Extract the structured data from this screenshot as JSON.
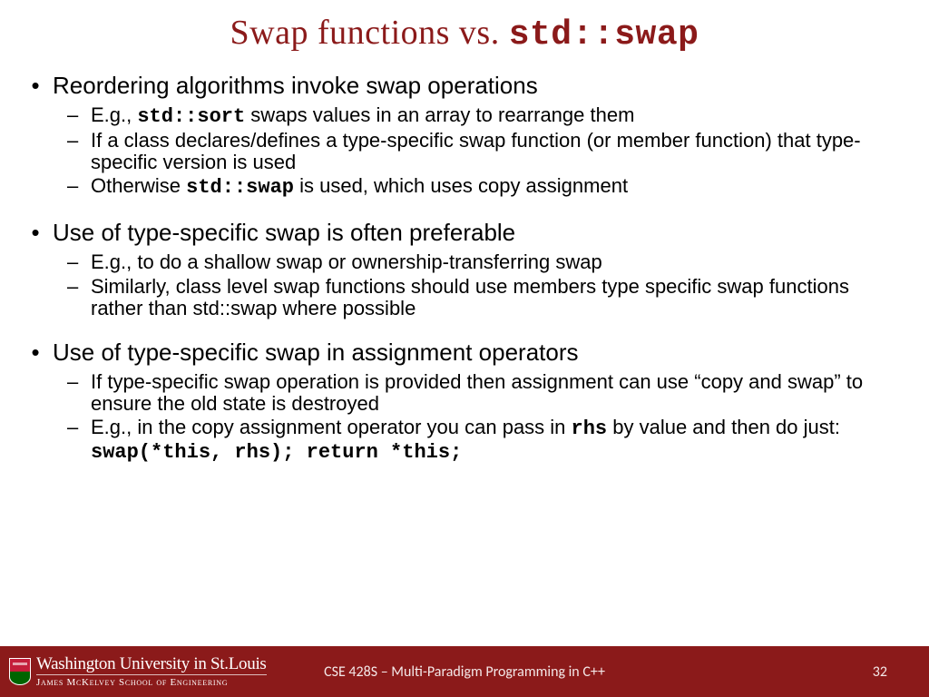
{
  "colors": {
    "accent": "#8b1a1a",
    "text": "#000000",
    "bg": "#ffffff",
    "footer_text": "#ffffff"
  },
  "title": {
    "prefix": "Swap functions vs. ",
    "code": "std::swap",
    "fontsize": 38
  },
  "body": {
    "font_family": "Verdana",
    "l1_fontsize": 26,
    "l2_fontsize": 22
  },
  "bullets": [
    {
      "text": "Reordering algorithms invoke swap operations",
      "sub": [
        {
          "parts": [
            {
              "t": "E.g., "
            },
            {
              "t": "std::sort",
              "code": true
            },
            {
              "t": " swaps values in an array to rearrange them"
            }
          ]
        },
        {
          "parts": [
            {
              "t": "If a class declares/defines a type-specific swap function (or member function) that type-specific version is used"
            }
          ]
        },
        {
          "parts": [
            {
              "t": "Otherwise "
            },
            {
              "t": "std::swap",
              "code": true
            },
            {
              "t": " is used, which uses copy assignment"
            }
          ]
        }
      ]
    },
    {
      "text": "Use of type-specific swap is often preferable",
      "sub": [
        {
          "parts": [
            {
              "t": "E.g., to do a shallow swap or ownership-transferring swap"
            }
          ]
        },
        {
          "parts": [
            {
              "t": "Similarly, class level swap functions should use members type specific swap functions rather than std::swap where possible"
            }
          ]
        }
      ]
    },
    {
      "text": "Use of type-specific swap in assignment operators",
      "sub": [
        {
          "parts": [
            {
              "t": "If type-specific swap operation is provided then assignment can use “copy and swap” to ensure the old state is destroyed"
            }
          ]
        },
        {
          "parts": [
            {
              "t": "E.g., in the copy assignment operator you can pass in "
            },
            {
              "t": "rhs",
              "code": true
            },
            {
              "t": " by value and then do just: "
            },
            {
              "t": "swap(*this, rhs); return *this;",
              "code": true
            }
          ]
        }
      ]
    }
  ],
  "footer": {
    "university": "Washington University in St.Louis",
    "school": "James McKelvey School of Engineering",
    "course": "CSE 428S – Multi-Paradigm Programming in C++",
    "page": "32"
  }
}
